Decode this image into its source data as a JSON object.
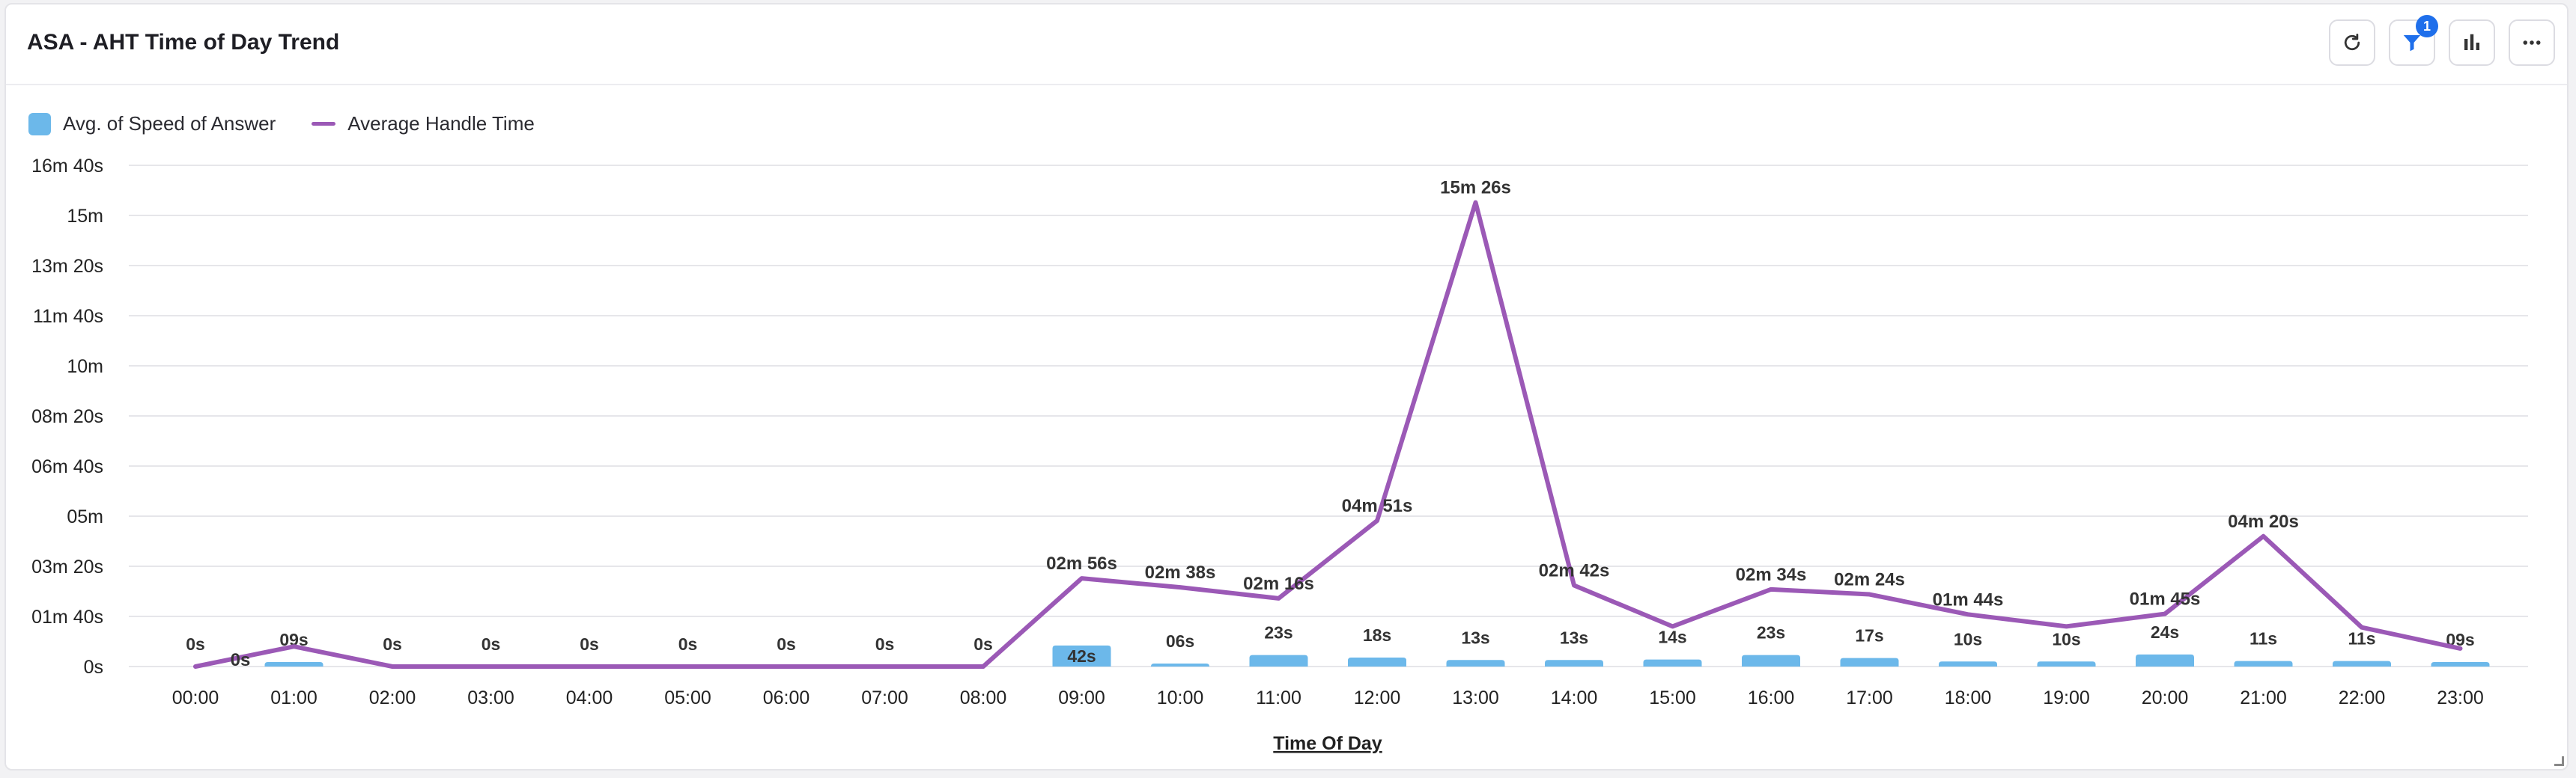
{
  "header": {
    "title": "ASA - AHT Time of Day Trend",
    "filter_badge": "1"
  },
  "icons": {
    "refresh": "refresh-icon",
    "filter": "filter-icon",
    "chart": "bar-chart-icon",
    "more": "more-icon"
  },
  "colors": {
    "bar": "#6cb8ea",
    "line": "#9b59b6",
    "grid": "#e6e6ea",
    "text": "#222222"
  },
  "chart_data": {
    "type": "bar",
    "xlabel": "Time Of Day",
    "ylabel": "",
    "ylim": [
      0,
      1000
    ],
    "y_unit": "seconds",
    "grid": true,
    "legend_position": "top-left",
    "y_ticks": [
      {
        "value": 0,
        "label": "0s"
      },
      {
        "value": 100,
        "label": "01m 40s"
      },
      {
        "value": 200,
        "label": "03m 20s"
      },
      {
        "value": 300,
        "label": "05m"
      },
      {
        "value": 400,
        "label": "06m 40s"
      },
      {
        "value": 500,
        "label": "08m 20s"
      },
      {
        "value": 600,
        "label": "10m"
      },
      {
        "value": 700,
        "label": "11m 40s"
      },
      {
        "value": 800,
        "label": "13m 20s"
      },
      {
        "value": 900,
        "label": "15m"
      },
      {
        "value": 1000,
        "label": "16m 40s"
      }
    ],
    "categories": [
      "00:00",
      "01:00",
      "02:00",
      "03:00",
      "04:00",
      "05:00",
      "06:00",
      "07:00",
      "08:00",
      "09:00",
      "10:00",
      "11:00",
      "12:00",
      "13:00",
      "14:00",
      "15:00",
      "16:00",
      "17:00",
      "18:00",
      "19:00",
      "20:00",
      "21:00",
      "22:00",
      "23:00"
    ],
    "series": [
      {
        "name": "Avg. of Speed of Answer",
        "kind": "bar",
        "values": [
          0,
          9,
          0,
          0,
          0,
          0,
          0,
          0,
          0,
          42,
          6,
          23,
          18,
          13,
          13,
          14,
          23,
          17,
          10,
          10,
          24,
          11,
          11,
          9
        ],
        "labels": [
          "0s",
          "09s",
          "0s",
          "0s",
          "0s",
          "0s",
          "0s",
          "0s",
          "0s",
          "42s",
          "06s",
          "23s",
          "18s",
          "13s",
          "13s",
          "14s",
          "23s",
          "17s",
          "10s",
          "10s",
          "24s",
          "11s",
          "11s",
          "09s"
        ]
      },
      {
        "name": "Average Handle Time",
        "kind": "line",
        "values": [
          0,
          40,
          0,
          0,
          0,
          0,
          0,
          0,
          0,
          176,
          158,
          136,
          291,
          926,
          162,
          80,
          154,
          144,
          104,
          80,
          105,
          260,
          78,
          36
        ],
        "labels": [
          "0s",
          "",
          "",
          "",
          "",
          "",
          "",
          "",
          "",
          "02m 56s",
          "02m 38s",
          "02m 16s",
          "04m 51s",
          "15m 26s",
          "02m 42s",
          "",
          "02m 34s",
          "02m 24s",
          "01m 44s",
          "",
          "01m 45s",
          "04m 20s",
          "",
          ""
        ]
      }
    ]
  }
}
